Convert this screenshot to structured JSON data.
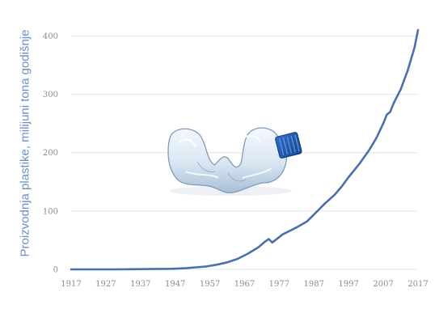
{
  "chart_data": {
    "type": "line",
    "title": "",
    "xlabel": "",
    "ylabel": "Proizvodnja plastike, milijuni tona godišnje",
    "xlim": [
      1917,
      2017
    ],
    "ylim": [
      0,
      420
    ],
    "x_ticks": [
      "1917",
      "1927",
      "1937",
      "1947",
      "1957",
      "1967",
      "1977",
      "1987",
      "1997",
      "2007",
      "2017"
    ],
    "y_ticks": [
      "0",
      "100",
      "200",
      "300",
      "400"
    ],
    "grid": true,
    "legend": "none",
    "colors": {
      "line": "#4a6fb0",
      "grid": "#e6e6e6",
      "tick_text": "#8c8c8c"
    },
    "series": [
      {
        "x": [
          1917,
          1930,
          1940,
          1946,
          1950,
          1953,
          1956,
          1959,
          1962,
          1965,
          1968,
          1971,
          1973,
          1974,
          1975,
          1978,
          1980,
          1982,
          1985,
          1988,
          1990,
          1993,
          1995,
          1997,
          2000,
          2003,
          2005,
          2007,
          2008,
          2009,
          2010,
          2012,
          2014,
          2016,
          2017
        ],
        "values": [
          0,
          0,
          0.5,
          1,
          2,
          3.5,
          5,
          8,
          12,
          18,
          27,
          38,
          48,
          52,
          46,
          60,
          66,
          72,
          82,
          100,
          112,
          128,
          142,
          158,
          180,
          205,
          225,
          250,
          265,
          270,
          285,
          308,
          340,
          380,
          410
        ]
      }
    ]
  },
  "illustration": {
    "icon": "plastic-bottle-icon"
  }
}
